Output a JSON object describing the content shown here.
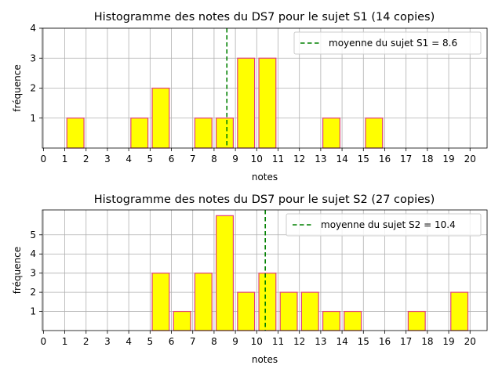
{
  "chart_data": [
    {
      "type": "bar",
      "title": "Histogramme des notes du DS7 pour le sujet S1 (14 copies)",
      "xlabel": "notes",
      "ylabel": "fréquence",
      "xlim": [
        0,
        20
      ],
      "ylim": [
        0,
        4
      ],
      "xticks": [
        0,
        1,
        2,
        3,
        4,
        5,
        6,
        7,
        8,
        9,
        10,
        11,
        12,
        13,
        14,
        15,
        16,
        17,
        18,
        19,
        20
      ],
      "yticks": [
        1,
        2,
        3,
        4
      ],
      "bins": [
        [
          1,
          2
        ],
        [
          2,
          3
        ],
        [
          3,
          4
        ],
        [
          4,
          5
        ],
        [
          5,
          6
        ],
        [
          6,
          7
        ],
        [
          7,
          8
        ],
        [
          8,
          9
        ],
        [
          9,
          10
        ],
        [
          10,
          11
        ],
        [
          11,
          12
        ],
        [
          12,
          13
        ],
        [
          13,
          14
        ],
        [
          14,
          15
        ],
        [
          15,
          16
        ],
        [
          16,
          17
        ],
        [
          17,
          18
        ],
        [
          18,
          19
        ],
        [
          19,
          20
        ]
      ],
      "values": [
        1,
        0,
        0,
        1,
        2,
        0,
        1,
        1,
        3,
        3,
        0,
        0,
        1,
        0,
        1,
        0,
        0,
        0,
        0
      ],
      "mean": 8.6,
      "legend": "moyenne du sujet S1 = 8.6",
      "legend_position": "upper right",
      "grid": true,
      "colors": {
        "bar_fill": "#ffff00",
        "bar_edge": "#e0407a",
        "mean_line": "#008000"
      }
    },
    {
      "type": "bar",
      "title": "Histogramme des notes du DS7 pour le sujet S2 (27 copies)",
      "xlabel": "notes",
      "ylabel": "fréquence",
      "xlim": [
        0,
        20
      ],
      "ylim": [
        0,
        6.3
      ],
      "xticks": [
        0,
        1,
        2,
        3,
        4,
        5,
        6,
        7,
        8,
        9,
        10,
        11,
        12,
        13,
        14,
        15,
        16,
        17,
        18,
        19,
        20
      ],
      "yticks": [
        1,
        2,
        3,
        4,
        5
      ],
      "bins": [
        [
          1,
          2
        ],
        [
          2,
          3
        ],
        [
          3,
          4
        ],
        [
          4,
          5
        ],
        [
          5,
          6
        ],
        [
          6,
          7
        ],
        [
          7,
          8
        ],
        [
          8,
          9
        ],
        [
          9,
          10
        ],
        [
          10,
          11
        ],
        [
          11,
          12
        ],
        [
          12,
          13
        ],
        [
          13,
          14
        ],
        [
          14,
          15
        ],
        [
          15,
          16
        ],
        [
          16,
          17
        ],
        [
          17,
          18
        ],
        [
          18,
          19
        ],
        [
          19,
          20
        ]
      ],
      "values": [
        0,
        0,
        0,
        0,
        3,
        1,
        3,
        6,
        2,
        3,
        2,
        2,
        1,
        1,
        0,
        0,
        1,
        0,
        2
      ],
      "mean": 10.4,
      "legend": "moyenne du sujet S2 = 10.4",
      "legend_position": "upper right",
      "grid": true,
      "colors": {
        "bar_fill": "#ffff00",
        "bar_edge": "#e0407a",
        "mean_line": "#008000"
      }
    }
  ]
}
